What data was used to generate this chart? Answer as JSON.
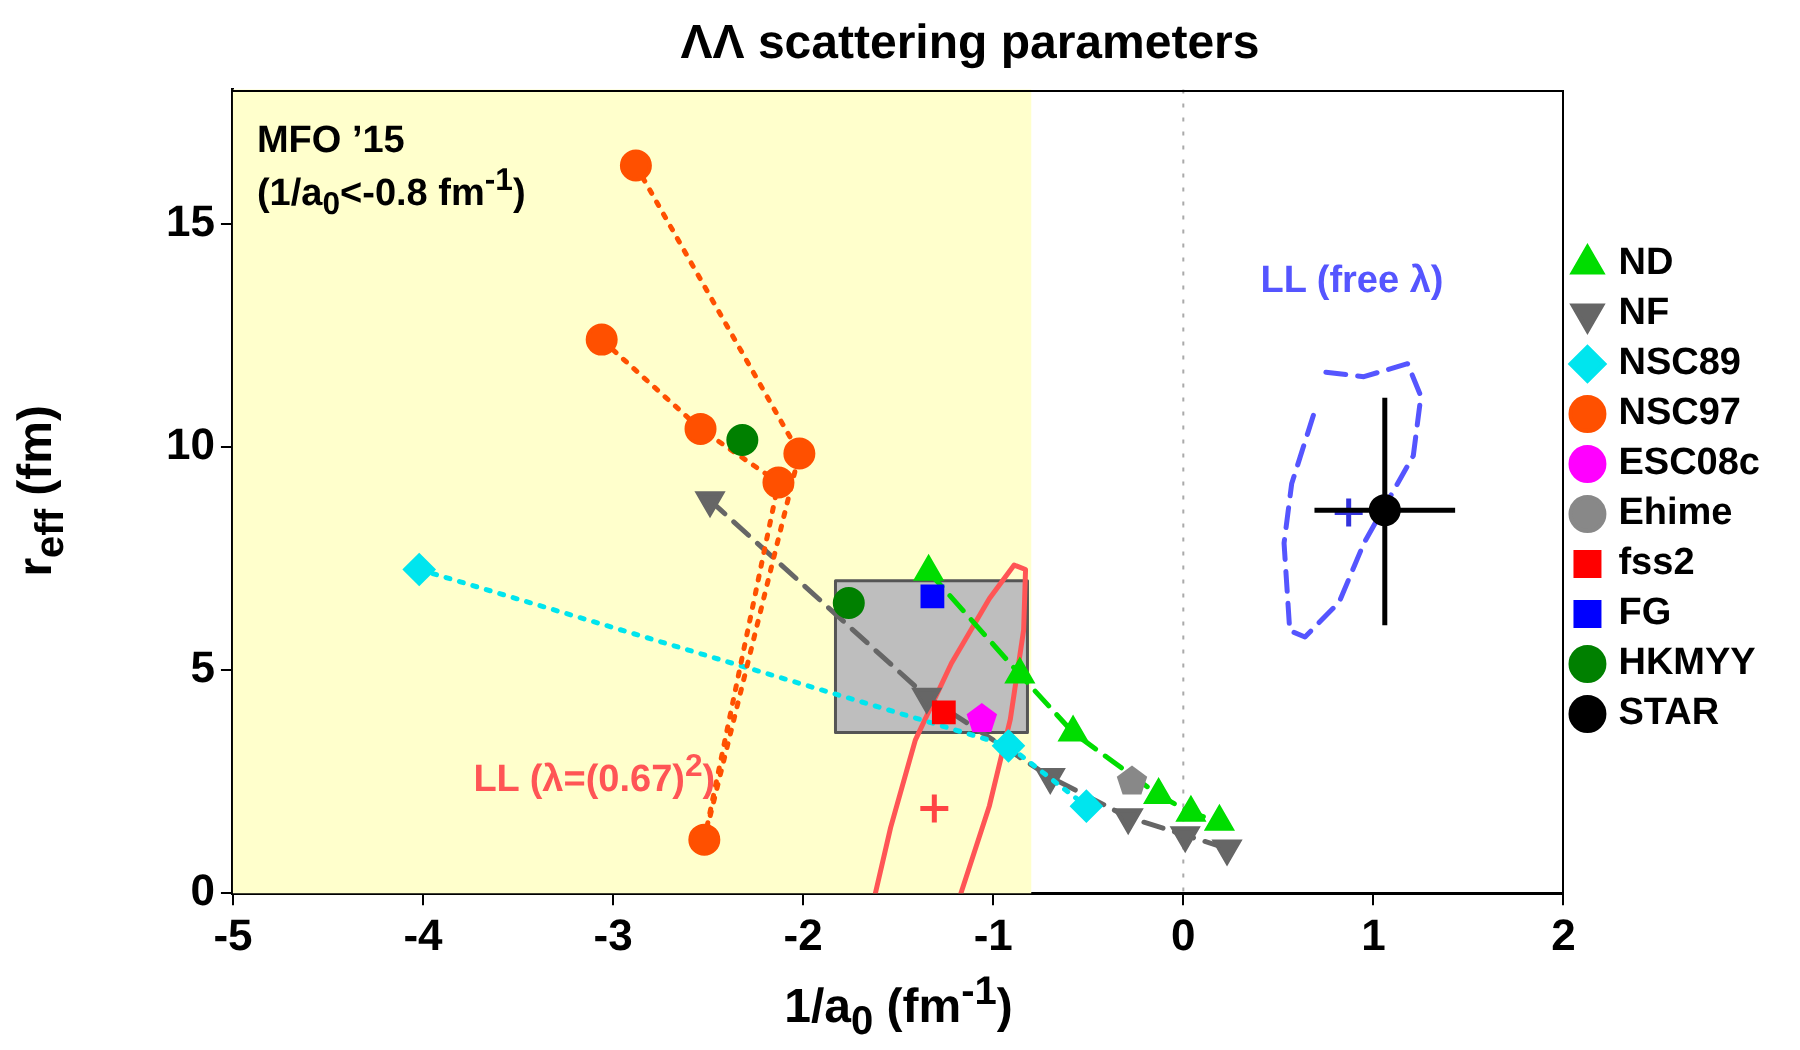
{
  "chart_data": {
    "type": "line",
    "title": "ΛΛ scattering parameters",
    "xlabel": "1/a$_{0}$ (fm$^{-1}$)",
    "ylabel": "r$_{eff}$ (fm)",
    "xlim": [
      -5,
      2
    ],
    "xticks": [
      -5,
      -4,
      -3,
      -2,
      -1,
      0,
      1,
      2
    ],
    "ylim": [
      0,
      18
    ],
    "yticks": [
      0,
      5,
      10,
      15
    ],
    "grid": false,
    "legend": "right",
    "bands": [
      {
        "axis": "x",
        "from": -5,
        "to": -0.8,
        "label": "MFO ’15\n(1/a$_{0}$<-0.8 fm$^{-1}$)",
        "color": "#ffffcc"
      }
    ],
    "ref_lines": [
      {
        "axis": "x",
        "value": 0,
        "color": "#aaaaaa",
        "line_style": "dotted"
      }
    ],
    "series": [
      {
        "type": "area",
        "color": "#bebebe",
        "marker": "none",
        "x": [
          -1.83,
          -0.82,
          -0.82,
          -1.83,
          -1.83
        ],
        "values": [
          3.6,
          3.6,
          7.0,
          7.0,
          3.6
        ]
      },
      {
        "name": "LL (λ=(0.67)$^{2}$)",
        "color": "#ff5555",
        "marker": "none",
        "line_style": "solid",
        "x": [
          -1.62,
          -1.54,
          -1.41,
          -1.22,
          -1.02,
          -0.89,
          -0.83,
          -0.84,
          -0.91,
          -1.02,
          -1.17
        ],
        "values": [
          0,
          1.47,
          3.43,
          5.15,
          6.6,
          7.35,
          7.25,
          5.9,
          3.9,
          1.96,
          0
        ]
      },
      {
        "type": "scatter",
        "color": "#ff4444",
        "marker": "cross",
        "x": [
          -1.31
        ],
        "values": [
          1.9
        ]
      },
      {
        "name": "LL (free λ)",
        "color": "#5555ff",
        "marker": "none",
        "line_style": "dashed",
        "x": [
          0.75,
          0.95,
          1.18,
          1.25,
          1.21,
          1.08,
          0.95,
          0.82,
          0.64,
          0.56,
          0.53,
          0.57,
          0.69
        ],
        "values": [
          11.67,
          11.57,
          11.86,
          11.13,
          9.8,
          8.82,
          7.84,
          6.52,
          5.74,
          5.88,
          7.84,
          9.17,
          10.78
        ]
      },
      {
        "type": "scatter",
        "color": "#3333dd",
        "marker": "cross",
        "x": [
          0.87
        ],
        "values": [
          8.53
        ]
      },
      {
        "name": "ND",
        "color": "#00dd00",
        "marker": "triangle",
        "line_style": "dashed",
        "x": [
          -1.34,
          -0.86,
          -0.58,
          -0.13,
          0.04,
          0.19
        ],
        "values": [
          7.2,
          4.9,
          3.6,
          2.2,
          1.8,
          1.6
        ]
      },
      {
        "name": "NF",
        "color": "#666666",
        "marker": "triangle-down",
        "line_style": "dashed",
        "x": [
          -2.49,
          -1.35,
          -0.7,
          -0.29,
          0.01,
          0.23
        ],
        "values": [
          8.8,
          4.4,
          2.6,
          1.7,
          1.3,
          1.0
        ]
      },
      {
        "name": "NSC89",
        "color": "#00e5ee",
        "marker": "diamond",
        "line_style": "dotted",
        "x": [
          -4.02,
          -0.92,
          -0.51
        ],
        "values": [
          7.25,
          3.3,
          1.95
        ]
      },
      {
        "name": "NSC97",
        "color": "#ff5000",
        "marker": "circle",
        "line_style": "dotted",
        "x": [
          -2.88,
          -2.02,
          -2.52,
          -2.13,
          -2.54,
          -3.06
        ],
        "values": [
          16.3,
          9.85,
          1.2,
          9.2,
          10.4,
          12.4
        ]
      },
      {
        "type": "scatter",
        "name": "ESC08c",
        "color": "#ff00ff",
        "x": [
          -1.06
        ],
        "values": [
          3.9
        ]
      },
      {
        "type": "scatter",
        "name": "Ehime",
        "color": "#888888",
        "x": [
          -0.27
        ],
        "values": [
          2.5
        ]
      },
      {
        "type": "scatter",
        "name": "fss2",
        "color": "#ff0000",
        "marker": "square",
        "x": [
          -1.26
        ],
        "values": [
          4.05
        ]
      },
      {
        "type": "scatter",
        "name": "FG",
        "color": "#0000ff",
        "marker": "square",
        "x": [
          -1.32
        ],
        "values": [
          6.65
        ]
      },
      {
        "type": "scatter",
        "name": "HKMYY",
        "color": "#008000",
        "marker": "circle",
        "x": [
          -2.32,
          -1.76
        ],
        "values": [
          10.15,
          6.5
        ]
      },
      {
        "type": "scatter",
        "name": "STAR",
        "color": "#000000",
        "marker": "circle",
        "x": [
          1.06
        ],
        "values": [
          8.58
        ],
        "errors": [
          [
            6.0,
            11.1
          ]
        ],
        "xerrors": [
          0.37
        ]
      }
    ]
  }
}
